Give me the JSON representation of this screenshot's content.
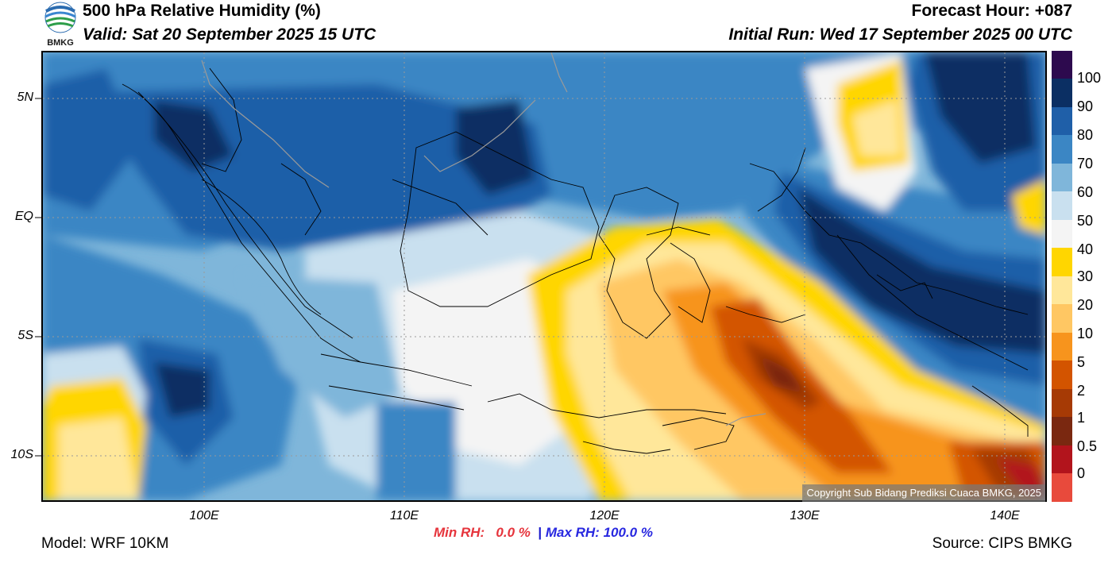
{
  "header": {
    "title": "500 hPa Relative Humidity (%)",
    "valid": "Valid: Sat 20 September 2025 15 UTC",
    "forecast_hour": "Forecast Hour: +087",
    "initial_run": "Initial Run: Wed 17 September 2025 00 UTC"
  },
  "logo": {
    "text": "BMKG"
  },
  "axes": {
    "lat_labels": [
      "5N",
      "EQ",
      "5S",
      "10S"
    ],
    "lon_labels": [
      "100E",
      "110E",
      "120E",
      "130E",
      "140E"
    ]
  },
  "colorbar": {
    "labels": [
      "100",
      "90",
      "80",
      "70",
      "60",
      "50",
      "40",
      "30",
      "20",
      "10",
      "5",
      "2",
      "1",
      "0.5",
      "0"
    ],
    "colors": [
      "#2d0a4e",
      "#0b2f63",
      "#1f5fa8",
      "#3b86c4",
      "#7fb6da",
      "#c9e0ef",
      "#f4f4f4",
      "#ffd600",
      "#ffe79a",
      "#ffc763",
      "#f7941d",
      "#d35400",
      "#a63a05",
      "#7a2810",
      "#b2141c",
      "#e84a3c"
    ]
  },
  "stats": {
    "min_label": "Min RH:",
    "min_value": "0.0 %",
    "separator": "|",
    "max_label": "Max RH:",
    "max_value": "100.0 %"
  },
  "footer": {
    "model": "Model: WRF 10KM",
    "source": "Source: CIPS BMKG",
    "copyright": "Copyright Sub Bidang Prediksi Cuaca BMKG, 2025"
  }
}
